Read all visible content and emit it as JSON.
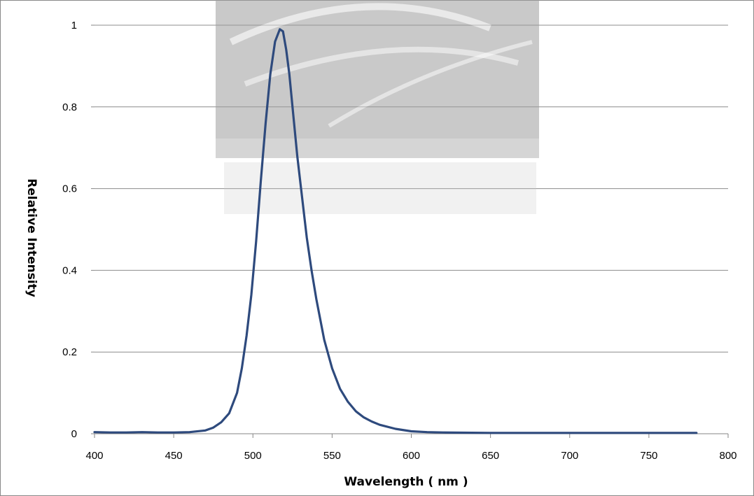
{
  "chart_data": {
    "type": "line",
    "title": "",
    "xlabel": "Wavelength ( nm )",
    "ylabel": "Relative Intensity",
    "xlim": [
      400,
      800
    ],
    "ylim": [
      0,
      1
    ],
    "x_ticks": [
      "400",
      "450",
      "500",
      "550",
      "600",
      "650",
      "700",
      "750",
      "800"
    ],
    "y_ticks": [
      "0",
      "0.2",
      "0.4",
      "0.6",
      "0.8",
      "1"
    ],
    "grid": "horizontal",
    "legend": "none",
    "series": [
      {
        "color": "#2e4a7d",
        "x": [
          400,
          410,
          420,
          430,
          440,
          450,
          460,
          470,
          475,
          480,
          485,
          490,
          493,
          496,
          499,
          502,
          505,
          508,
          511,
          514,
          517,
          519,
          521,
          523,
          525,
          528,
          531,
          534,
          537,
          540,
          545,
          550,
          555,
          560,
          565,
          570,
          575,
          580,
          590,
          600,
          610,
          620,
          650,
          700,
          750,
          780
        ],
        "y": [
          0.004,
          0.003,
          0.003,
          0.004,
          0.003,
          0.003,
          0.004,
          0.008,
          0.015,
          0.028,
          0.05,
          0.1,
          0.16,
          0.24,
          0.34,
          0.47,
          0.62,
          0.76,
          0.88,
          0.96,
          0.99,
          0.985,
          0.94,
          0.88,
          0.8,
          0.68,
          0.58,
          0.48,
          0.4,
          0.33,
          0.23,
          0.16,
          0.11,
          0.078,
          0.055,
          0.04,
          0.03,
          0.022,
          0.012,
          0.006,
          0.004,
          0.003,
          0.002,
          0.002,
          0.002,
          0.002
        ]
      }
    ]
  }
}
